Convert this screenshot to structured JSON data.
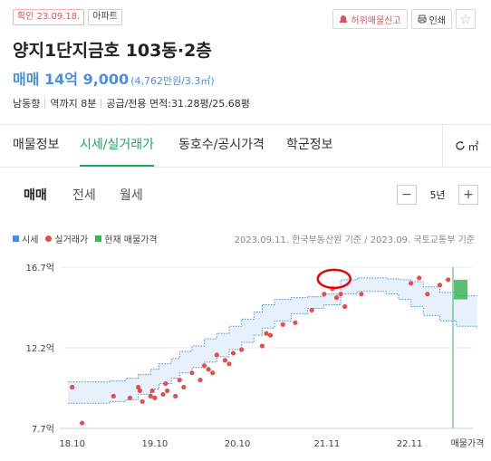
{
  "header": {
    "verified_badge": "확인 23.09.18.",
    "type_badge": "아파트",
    "report_label": "허위매물신고",
    "print_label": "인쇄"
  },
  "listing": {
    "title": "양지1단지금호 103동·2층",
    "price_label": "매매 14억 9,000",
    "price_sub": "(4,762만원/3.3㎡)",
    "specs": [
      "남동향",
      "역까지 8분",
      "공급/전용 면적:31.28평/25.68평"
    ]
  },
  "tabs": {
    "items": [
      "매물정보",
      "시세/실거래가",
      "동호수/공시가격",
      "학군정보"
    ],
    "active": 1,
    "unit_toggle": "㎡"
  },
  "deal_tabs": {
    "items": [
      "매매",
      "전세",
      "월세"
    ],
    "active": 0
  },
  "period": {
    "label": "5년",
    "minus": "−",
    "plus": "+"
  },
  "legend": {
    "market": "시세",
    "actual": "실거래가",
    "listing": "현재 매물가격",
    "source": "2023.09.11. 한국부동산원 기준 / 2023.09. 국토교통부 기준"
  },
  "colors": {
    "market": "#4a8fe6",
    "actual": "#e84c4c",
    "listing": "#3cb45a",
    "accent": "#1fa368"
  },
  "chart_data": {
    "type": "scatter",
    "ylabel_ticks": [
      "16.7억",
      "12.2억",
      "7.7억"
    ],
    "y_ticks": [
      16.7,
      12.2,
      7.7
    ],
    "x_ticks": [
      "18.10",
      "19.10",
      "20.10",
      "21.11",
      "22.11"
    ],
    "x_tick_values": [
      2018.75,
      2019.75,
      2020.75,
      2021.8333,
      2022.8333
    ],
    "x_end_label": "매물가격",
    "ylim": [
      7.7,
      16.7
    ],
    "xlim": [
      2018.6,
      2023.6
    ],
    "series": [
      {
        "name": "시세",
        "type": "band",
        "x": [
          2018.7,
          2018.95,
          2019.2,
          2019.4,
          2019.55,
          2019.7,
          2019.8,
          2019.95,
          2020.05,
          2020.2,
          2020.35,
          2020.5,
          2020.65,
          2020.8,
          2020.95,
          2021.05,
          2021.2,
          2021.4,
          2021.6,
          2021.8,
          2022.0,
          2022.2,
          2022.4,
          2022.55,
          2022.7,
          2022.85,
          2023.0,
          2023.2,
          2023.4,
          2023.65
        ],
        "upper": [
          10.3,
          10.3,
          10.35,
          10.5,
          10.7,
          11.0,
          11.3,
          11.6,
          12.0,
          12.3,
          12.7,
          13.0,
          13.4,
          13.8,
          14.2,
          14.6,
          14.9,
          15.0,
          15.05,
          15.2,
          16.0,
          16.1,
          16.1,
          16.05,
          16.0,
          15.9,
          15.6,
          15.3,
          15.1,
          15.1
        ],
        "lower": [
          9.1,
          9.1,
          9.2,
          9.3,
          9.6,
          9.9,
          10.2,
          10.5,
          10.8,
          11.1,
          11.4,
          11.7,
          12.1,
          12.5,
          12.9,
          13.3,
          13.7,
          14.1,
          14.4,
          14.6,
          15.2,
          15.35,
          15.35,
          15.2,
          14.9,
          14.5,
          14.0,
          13.7,
          13.4,
          13.3
        ]
      },
      {
        "name": "실거래가",
        "type": "scatter",
        "x": [
          2018.75,
          2018.87,
          2019.25,
          2019.45,
          2019.55,
          2019.57,
          2019.6,
          2019.7,
          2019.72,
          2019.75,
          2019.85,
          2019.88,
          2019.9,
          2020.0,
          2020.05,
          2020.1,
          2020.2,
          2020.3,
          2020.35,
          2020.4,
          2020.45,
          2020.5,
          2020.6,
          2020.65,
          2020.7,
          2020.8,
          2021.05,
          2021.1,
          2021.15,
          2021.3,
          2021.45,
          2021.65,
          2021.8,
          2021.9,
          2021.95,
          2022.0,
          2022.05,
          2022.25,
          2022.85,
          2022.95,
          2023.05,
          2023.2,
          2023.3
        ],
        "y": [
          10.0,
          8.0,
          9.5,
          9.4,
          10.0,
          9.8,
          9.2,
          9.5,
          9.8,
          9.4,
          9.6,
          10.2,
          9.8,
          9.5,
          10.4,
          10.0,
          10.8,
          10.4,
          11.2,
          11.0,
          10.8,
          11.8,
          11.5,
          11.3,
          11.9,
          12.1,
          12.3,
          13.0,
          12.9,
          13.5,
          13.6,
          14.3,
          15.2,
          15.5,
          15.0,
          15.2,
          14.5,
          15.2,
          15.8,
          16.1,
          15.2,
          15.7,
          16.0
        ]
      },
      {
        "name": "현재 매물가격",
        "type": "bar",
        "range": [
          14.9,
          16.0
        ]
      }
    ]
  }
}
